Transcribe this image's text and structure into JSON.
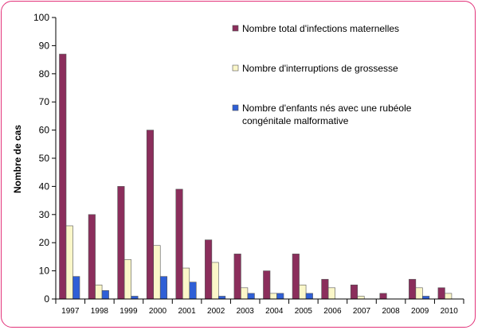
{
  "chart_data": {
    "type": "bar",
    "title": "",
    "xlabel": "",
    "ylabel": "Nombre de cas",
    "ylim": [
      0,
      100
    ],
    "yticks": [
      0,
      10,
      20,
      30,
      40,
      50,
      60,
      70,
      80,
      90,
      100
    ],
    "categories": [
      "1997",
      "1998",
      "1999",
      "2000",
      "2001",
      "2002",
      "2003",
      "2004",
      "2005",
      "2006",
      "2007",
      "2008",
      "2009",
      "2010"
    ],
    "series": [
      {
        "name": "Nombre total d'infections maternelles",
        "color": "#8b2e5c",
        "values": [
          87,
          30,
          40,
          60,
          39,
          21,
          16,
          10,
          16,
          7,
          5,
          2,
          7,
          4
        ]
      },
      {
        "name": "Nombre d'interruptions de grossesse",
        "color": "#fbf7c9",
        "values": [
          26,
          5,
          14,
          19,
          11,
          13,
          4,
          2,
          5,
          4,
          1,
          0,
          4,
          2
        ]
      },
      {
        "name": "Nombre d'enfants nés avec une rubéole congénitale malformative",
        "color": "#2f5fd6",
        "values": [
          8,
          3,
          1,
          8,
          6,
          1,
          2,
          2,
          2,
          0,
          0,
          0,
          1,
          0
        ]
      }
    ],
    "legend": {
      "position": "top-right",
      "entries": [
        {
          "lines": [
            "Nombre total d'infections maternelles"
          ]
        },
        {
          "lines": [
            "Nombre d'interruptions de grossesse"
          ]
        },
        {
          "lines": [
            "Nombre d'enfants nés avec une rubéole",
            "congénitale malformative"
          ]
        }
      ]
    },
    "grid": false
  }
}
